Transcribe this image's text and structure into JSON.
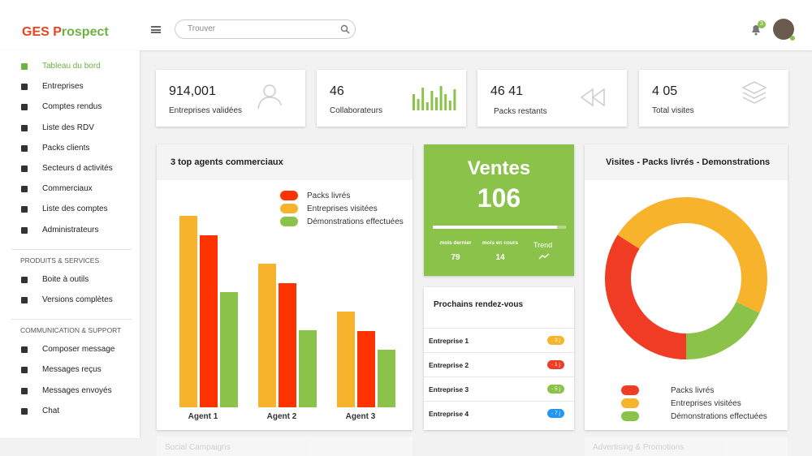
{
  "header": {
    "logo_1": "GES P",
    "logo_2": "rospect",
    "search_placeholder": "Trouver",
    "notifications": "3"
  },
  "sidebar": {
    "groups": [
      {
        "items": [
          "Tableau du bord",
          "Entreprises",
          "Comptes rendus",
          "Liste des RDV",
          "Packs clients",
          "Secteurs d activités",
          "Commerciaux",
          "Liste des comptes",
          "Administrateurs"
        ]
      },
      {
        "title": "PRODUITS & SERVICES",
        "items": [
          "Boite à outils",
          "Versions complètes"
        ]
      },
      {
        "title": "COMMUNICATION & SUPPORT",
        "items": [
          "Composer message",
          "Messages reçus",
          "Messages envoyés",
          "Chat"
        ]
      }
    ]
  },
  "stats": [
    {
      "value": "914,001",
      "label": "Entreprises validées"
    },
    {
      "value": "46",
      "label": "Collaborateurs"
    },
    {
      "value": "46 41",
      "label": "Packs restants"
    },
    {
      "value": "4 05",
      "label": "Total visites"
    }
  ],
  "bar_chart": {
    "type": "bar",
    "title": "3 top agents commerciaux",
    "categories": [
      "Agent 1",
      "Agent 2",
      "Agent 3"
    ],
    "series": [
      {
        "name": "Packs livrés",
        "color": "#ff3300",
        "values": [
          212,
          153,
          94
        ]
      },
      {
        "name": "Entreprises visitées",
        "color": "#f7b32b",
        "values": [
          236,
          177,
          118
        ]
      },
      {
        "name": "Démonstrations effectuées",
        "color": "#8bc34a",
        "values": [
          142,
          95,
          71
        ]
      }
    ]
  },
  "ventes": {
    "title": "Ventes",
    "value": "106",
    "progress": 93,
    "stats": [
      {
        "label": "mois dernier",
        "value": "79"
      },
      {
        "label": "mois en cours",
        "value": "14"
      }
    ],
    "trend": "Trend"
  },
  "rendezvous": {
    "title": "Prochains rendez-vous",
    "items": [
      {
        "name": "Entreprise 1",
        "badge": "- 3 j",
        "color": "#f7b32b"
      },
      {
        "name": "Entreprise 2",
        "badge": "- 1 j",
        "color": "#f03c24"
      },
      {
        "name": "Entreprise 3",
        "badge": "- 5 j",
        "color": "#8bc34a"
      },
      {
        "name": "Entreprise 4",
        "badge": "- 7 j",
        "color": "#2196f3"
      }
    ]
  },
  "donut_chart": {
    "type": "pie",
    "title": "Visites -  Packs livrés - Demonstrations",
    "categories": [
      "Packs livrés",
      "Entreprises visitées",
      "Démonstrations effectuées"
    ],
    "values": [
      34,
      48,
      18
    ],
    "colors": [
      "#f03c24",
      "#f7b32b",
      "#8bc34a"
    ]
  },
  "footer_cards": [
    "Social Campaigns",
    "Advertising & Promotions"
  ]
}
